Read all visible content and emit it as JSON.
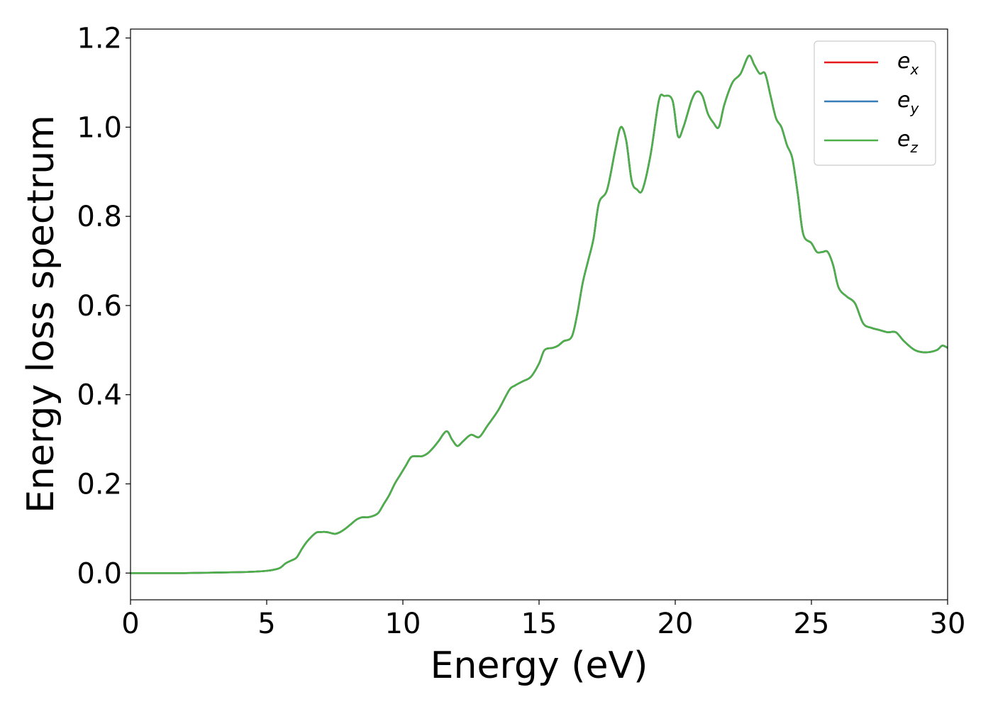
{
  "chart_data": {
    "type": "line",
    "title": "",
    "xlabel": "Energy (eV)",
    "ylabel": "Energy loss spectrum",
    "xlim": [
      0,
      30
    ],
    "ylim": [
      -0.06,
      1.22
    ],
    "x_ticks": [
      "0",
      "5",
      "10",
      "15",
      "20",
      "25",
      "30"
    ],
    "y_ticks": [
      "0.0",
      "0.2",
      "0.4",
      "0.6",
      "0.8",
      "1.0",
      "1.2"
    ],
    "x_tick_values": [
      0,
      5,
      10,
      15,
      20,
      25,
      30
    ],
    "y_tick_values": [
      0,
      0.2,
      0.4,
      0.6,
      0.8,
      1.0,
      1.2
    ],
    "grid": false,
    "legend_position": "top-right",
    "series": [
      {
        "name": "e_x",
        "label_main": "e",
        "label_sub": "x",
        "color": "#e41a1c",
        "x": [
          0,
          1,
          2,
          3,
          4,
          4.5,
          5,
          5.3,
          5.5,
          5.7,
          5.9,
          6.1,
          6.3,
          6.5,
          6.8,
          7.0,
          7.2,
          7.5,
          7.7,
          7.9,
          8.1,
          8.3,
          8.5,
          8.7,
          8.9,
          9.1,
          9.3,
          9.5,
          9.7,
          9.9,
          10.1,
          10.3,
          10.5,
          10.7,
          10.9,
          11.1,
          11.3,
          11.6,
          11.8,
          12.0,
          12.2,
          12.5,
          12.8,
          13.1,
          13.5,
          13.9,
          14.1,
          14.4,
          14.7,
          15.0,
          15.2,
          15.5,
          15.7,
          15.9,
          16.2,
          16.4,
          16.6,
          16.8,
          17.0,
          17.2,
          17.5,
          17.8,
          18.0,
          18.2,
          18.4,
          18.6,
          18.8,
          19.1,
          19.4,
          19.6,
          19.9,
          20.1,
          20.3,
          20.6,
          20.8,
          21.0,
          21.2,
          21.4,
          21.6,
          21.8,
          22.1,
          22.4,
          22.7,
          22.9,
          23.1,
          23.3,
          23.5,
          23.7,
          23.9,
          24.1,
          24.3,
          24.5,
          24.7,
          25.0,
          25.2,
          25.4,
          25.6,
          25.8,
          26.0,
          26.3,
          26.6,
          26.9,
          27.2,
          27.5,
          27.8,
          28.1,
          28.4,
          28.8,
          29.2,
          29.6,
          29.8,
          30.0
        ],
        "y": [
          0.0,
          0.0,
          0.0,
          0.001,
          0.002,
          0.003,
          0.005,
          0.008,
          0.012,
          0.022,
          0.028,
          0.035,
          0.055,
          0.072,
          0.09,
          0.092,
          0.092,
          0.088,
          0.092,
          0.1,
          0.11,
          0.12,
          0.125,
          0.125,
          0.128,
          0.135,
          0.155,
          0.175,
          0.2,
          0.22,
          0.24,
          0.26,
          0.262,
          0.262,
          0.268,
          0.28,
          0.295,
          0.318,
          0.3,
          0.285,
          0.295,
          0.31,
          0.305,
          0.33,
          0.365,
          0.41,
          0.42,
          0.43,
          0.44,
          0.47,
          0.5,
          0.505,
          0.51,
          0.52,
          0.53,
          0.58,
          0.65,
          0.7,
          0.75,
          0.83,
          0.86,
          0.95,
          1.0,
          0.97,
          0.88,
          0.86,
          0.86,
          0.94,
          1.06,
          1.07,
          1.06,
          0.98,
          1.0,
          1.06,
          1.08,
          1.07,
          1.03,
          1.01,
          1.0,
          1.05,
          1.1,
          1.12,
          1.16,
          1.14,
          1.12,
          1.12,
          1.07,
          1.02,
          1.0,
          0.96,
          0.93,
          0.85,
          0.76,
          0.74,
          0.72,
          0.72,
          0.72,
          0.69,
          0.64,
          0.62,
          0.605,
          0.56,
          0.55,
          0.545,
          0.54,
          0.54,
          0.52,
          0.5,
          0.495,
          0.5,
          0.51,
          0.505
        ]
      },
      {
        "name": "e_y",
        "label_main": "e",
        "label_sub": "y",
        "color": "#377eb8",
        "x": [
          0,
          1,
          2,
          3,
          4,
          4.5,
          5,
          5.3,
          5.5,
          5.7,
          5.9,
          6.1,
          6.3,
          6.5,
          6.8,
          7.0,
          7.2,
          7.5,
          7.7,
          7.9,
          8.1,
          8.3,
          8.5,
          8.7,
          8.9,
          9.1,
          9.3,
          9.5,
          9.7,
          9.9,
          10.1,
          10.3,
          10.5,
          10.7,
          10.9,
          11.1,
          11.3,
          11.6,
          11.8,
          12.0,
          12.2,
          12.5,
          12.8,
          13.1,
          13.5,
          13.9,
          14.1,
          14.4,
          14.7,
          15.0,
          15.2,
          15.5,
          15.7,
          15.9,
          16.2,
          16.4,
          16.6,
          16.8,
          17.0,
          17.2,
          17.5,
          17.8,
          18.0,
          18.2,
          18.4,
          18.6,
          18.8,
          19.1,
          19.4,
          19.6,
          19.9,
          20.1,
          20.3,
          20.6,
          20.8,
          21.0,
          21.2,
          21.4,
          21.6,
          21.8,
          22.1,
          22.4,
          22.7,
          22.9,
          23.1,
          23.3,
          23.5,
          23.7,
          23.9,
          24.1,
          24.3,
          24.5,
          24.7,
          25.0,
          25.2,
          25.4,
          25.6,
          25.8,
          26.0,
          26.3,
          26.6,
          26.9,
          27.2,
          27.5,
          27.8,
          28.1,
          28.4,
          28.8,
          29.2,
          29.6,
          29.8,
          30.0
        ],
        "y": [
          0.0,
          0.0,
          0.0,
          0.001,
          0.002,
          0.003,
          0.005,
          0.008,
          0.012,
          0.022,
          0.028,
          0.035,
          0.055,
          0.072,
          0.09,
          0.092,
          0.092,
          0.088,
          0.092,
          0.1,
          0.11,
          0.12,
          0.125,
          0.125,
          0.128,
          0.135,
          0.155,
          0.175,
          0.2,
          0.22,
          0.24,
          0.26,
          0.262,
          0.262,
          0.268,
          0.28,
          0.295,
          0.318,
          0.3,
          0.285,
          0.295,
          0.31,
          0.305,
          0.33,
          0.365,
          0.41,
          0.42,
          0.43,
          0.44,
          0.47,
          0.5,
          0.505,
          0.51,
          0.52,
          0.53,
          0.58,
          0.65,
          0.7,
          0.75,
          0.83,
          0.86,
          0.95,
          1.0,
          0.97,
          0.88,
          0.86,
          0.86,
          0.94,
          1.06,
          1.07,
          1.06,
          0.98,
          1.0,
          1.06,
          1.08,
          1.07,
          1.03,
          1.01,
          1.0,
          1.05,
          1.1,
          1.12,
          1.16,
          1.14,
          1.12,
          1.12,
          1.07,
          1.02,
          1.0,
          0.96,
          0.93,
          0.85,
          0.76,
          0.74,
          0.72,
          0.72,
          0.72,
          0.69,
          0.64,
          0.62,
          0.605,
          0.56,
          0.55,
          0.545,
          0.54,
          0.54,
          0.52,
          0.5,
          0.495,
          0.5,
          0.51,
          0.505
        ]
      },
      {
        "name": "e_z",
        "label_main": "e",
        "label_sub": "z",
        "color": "#4daf4a",
        "x": [
          0,
          1,
          2,
          3,
          4,
          4.5,
          5,
          5.3,
          5.5,
          5.7,
          5.9,
          6.1,
          6.3,
          6.5,
          6.8,
          7.0,
          7.2,
          7.5,
          7.7,
          7.9,
          8.1,
          8.3,
          8.5,
          8.7,
          8.9,
          9.1,
          9.3,
          9.5,
          9.7,
          9.9,
          10.1,
          10.3,
          10.5,
          10.7,
          10.9,
          11.1,
          11.3,
          11.6,
          11.8,
          12.0,
          12.2,
          12.5,
          12.8,
          13.1,
          13.5,
          13.9,
          14.1,
          14.4,
          14.7,
          15.0,
          15.2,
          15.5,
          15.7,
          15.9,
          16.2,
          16.4,
          16.6,
          16.8,
          17.0,
          17.2,
          17.5,
          17.8,
          18.0,
          18.2,
          18.4,
          18.6,
          18.8,
          19.1,
          19.4,
          19.6,
          19.9,
          20.1,
          20.3,
          20.6,
          20.8,
          21.0,
          21.2,
          21.4,
          21.6,
          21.8,
          22.1,
          22.4,
          22.7,
          22.9,
          23.1,
          23.3,
          23.5,
          23.7,
          23.9,
          24.1,
          24.3,
          24.5,
          24.7,
          25.0,
          25.2,
          25.4,
          25.6,
          25.8,
          26.0,
          26.3,
          26.6,
          26.9,
          27.2,
          27.5,
          27.8,
          28.1,
          28.4,
          28.8,
          29.2,
          29.6,
          29.8,
          30.0
        ],
        "y": [
          0.0,
          0.0,
          0.0,
          0.001,
          0.002,
          0.003,
          0.005,
          0.008,
          0.012,
          0.022,
          0.028,
          0.035,
          0.055,
          0.072,
          0.09,
          0.092,
          0.092,
          0.088,
          0.092,
          0.1,
          0.11,
          0.12,
          0.125,
          0.125,
          0.128,
          0.135,
          0.155,
          0.175,
          0.2,
          0.22,
          0.24,
          0.26,
          0.262,
          0.262,
          0.268,
          0.28,
          0.295,
          0.318,
          0.3,
          0.285,
          0.295,
          0.31,
          0.305,
          0.33,
          0.365,
          0.41,
          0.42,
          0.43,
          0.44,
          0.47,
          0.5,
          0.505,
          0.51,
          0.52,
          0.53,
          0.58,
          0.65,
          0.7,
          0.75,
          0.83,
          0.86,
          0.95,
          1.0,
          0.97,
          0.88,
          0.86,
          0.86,
          0.94,
          1.06,
          1.07,
          1.06,
          0.98,
          1.0,
          1.06,
          1.08,
          1.07,
          1.03,
          1.01,
          1.0,
          1.05,
          1.1,
          1.12,
          1.16,
          1.14,
          1.12,
          1.12,
          1.07,
          1.02,
          1.0,
          0.96,
          0.93,
          0.85,
          0.76,
          0.74,
          0.72,
          0.72,
          0.72,
          0.69,
          0.64,
          0.62,
          0.605,
          0.56,
          0.55,
          0.545,
          0.54,
          0.54,
          0.52,
          0.5,
          0.495,
          0.5,
          0.51,
          0.505
        ]
      }
    ]
  }
}
